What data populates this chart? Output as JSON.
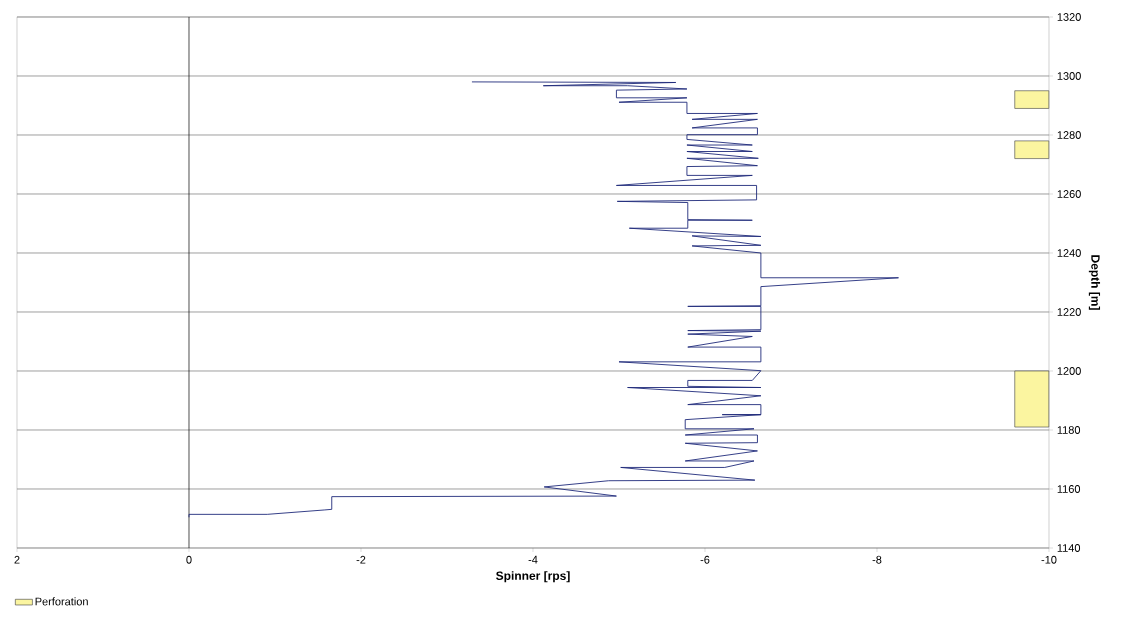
{
  "chart_data": {
    "type": "line",
    "xlabel": "Spinner [rps]",
    "ylabel": "Depth [m]",
    "xlim": [
      2,
      -10
    ],
    "ylim": [
      1140,
      1320
    ],
    "xticks": [
      2,
      0,
      -2,
      -4,
      -6,
      -8,
      -10
    ],
    "yticks": [
      1140,
      1160,
      1180,
      1200,
      1220,
      1240,
      1260,
      1280,
      1300,
      1320
    ],
    "grid": "y",
    "legend": "bottom left",
    "ref_lines": [
      {
        "axis": "x",
        "value": 0,
        "color": "#000000"
      }
    ],
    "series": [
      {
        "name": "Perforation",
        "type": "bar",
        "color": "#fbf5a0",
        "x": [
          -9.8
        ],
        "base": [
          1289
        ],
        "values": [
          6
        ]
      },
      {
        "type": "bar",
        "color": "#fbf5a0",
        "x": [
          -9.8
        ],
        "base": [
          1272
        ],
        "values": [
          6
        ]
      },
      {
        "type": "bar",
        "color": "#fbf5a0",
        "x": [
          -9.8
        ],
        "base": [
          1181
        ],
        "values": [
          19
        ]
      },
      {
        "color": "#1f2a7a",
        "x": [
          0,
          0,
          -0.91,
          -1.58,
          -1.66,
          -1.66,
          -4.97,
          -4.13,
          -4.88,
          -6.58,
          -5.02,
          -6.23,
          -6.57,
          -5.77,
          -6.61,
          -5.77,
          -6.61,
          -6.61,
          -5.77,
          -6.57,
          -5.77,
          -5.77,
          -6.65,
          -6.2,
          -6.65,
          -6.65,
          -5.8,
          -6.65,
          -5.1,
          -6.65,
          -5.8,
          -5.8,
          -6.55,
          -6.65,
          -5.0,
          -6.65,
          -6.65,
          -5.8,
          -6.55,
          -5.8,
          -6.65,
          -5.8,
          -6.65,
          -6.65,
          -5.8,
          -6.65,
          -6.65,
          -8.25,
          -6.65,
          -6.65,
          -5.85,
          -6.65,
          -5.85,
          -6.65,
          -5.12,
          -5.8,
          -5.8,
          -6.55,
          -5.8,
          -5.8,
          -4.98,
          -6.6,
          -6.6,
          -4.97,
          -6.55,
          -5.79,
          -5.79,
          -6.61,
          -5.79,
          -6.62,
          -5.79,
          -6.55,
          -5.79,
          -6.55,
          -5.79,
          -5.79,
          -6.61,
          -6.61,
          -5.85,
          -6.61,
          -5.85,
          -6.61,
          -5.79,
          -5.79,
          -5.0,
          -5.79,
          -4.97,
          -4.97,
          -5.79,
          -5.1,
          -4.12,
          -5.66,
          -3.29
        ],
        "values": [
          1150.4,
          1151.4,
          1151.4,
          1152.9,
          1153.1,
          1157.4,
          1157.6,
          1160.7,
          1162.8,
          1163.0,
          1167.3,
          1167.3,
          1169.5,
          1169.5,
          1172.9,
          1175.5,
          1175.7,
          1178.3,
          1178.3,
          1180.4,
          1180.4,
          1183.5,
          1185.2,
          1185.2,
          1185.2,
          1188.6,
          1188.6,
          1191.6,
          1194.4,
          1194.4,
          1194.8,
          1196.8,
          1196.8,
          1200.1,
          1203.1,
          1203.1,
          1208.1,
          1208.1,
          1211.7,
          1212.5,
          1213.5,
          1213.7,
          1214.0,
          1221.9,
          1221.9,
          1222.1,
          1228.6,
          1231.6,
          1231.6,
          1240.0,
          1242.4,
          1242.6,
          1245.8,
          1245.6,
          1248.4,
          1248.4,
          1251.1,
          1251.1,
          1251.3,
          1257.1,
          1257.5,
          1258.0,
          1262.9,
          1262.9,
          1266.3,
          1266.3,
          1269.3,
          1269.6,
          1272.1,
          1272.1,
          1274.4,
          1274.4,
          1276.6,
          1276.6,
          1278.5,
          1280.1,
          1280.1,
          1282.4,
          1282.4,
          1285.3,
          1285.3,
          1287.3,
          1287.3,
          1291.1,
          1291.1,
          1292.6,
          1292.6,
          1295.2,
          1295.6,
          1296.7,
          1296.7,
          1297.8,
          1298.0
        ]
      }
    ]
  }
}
